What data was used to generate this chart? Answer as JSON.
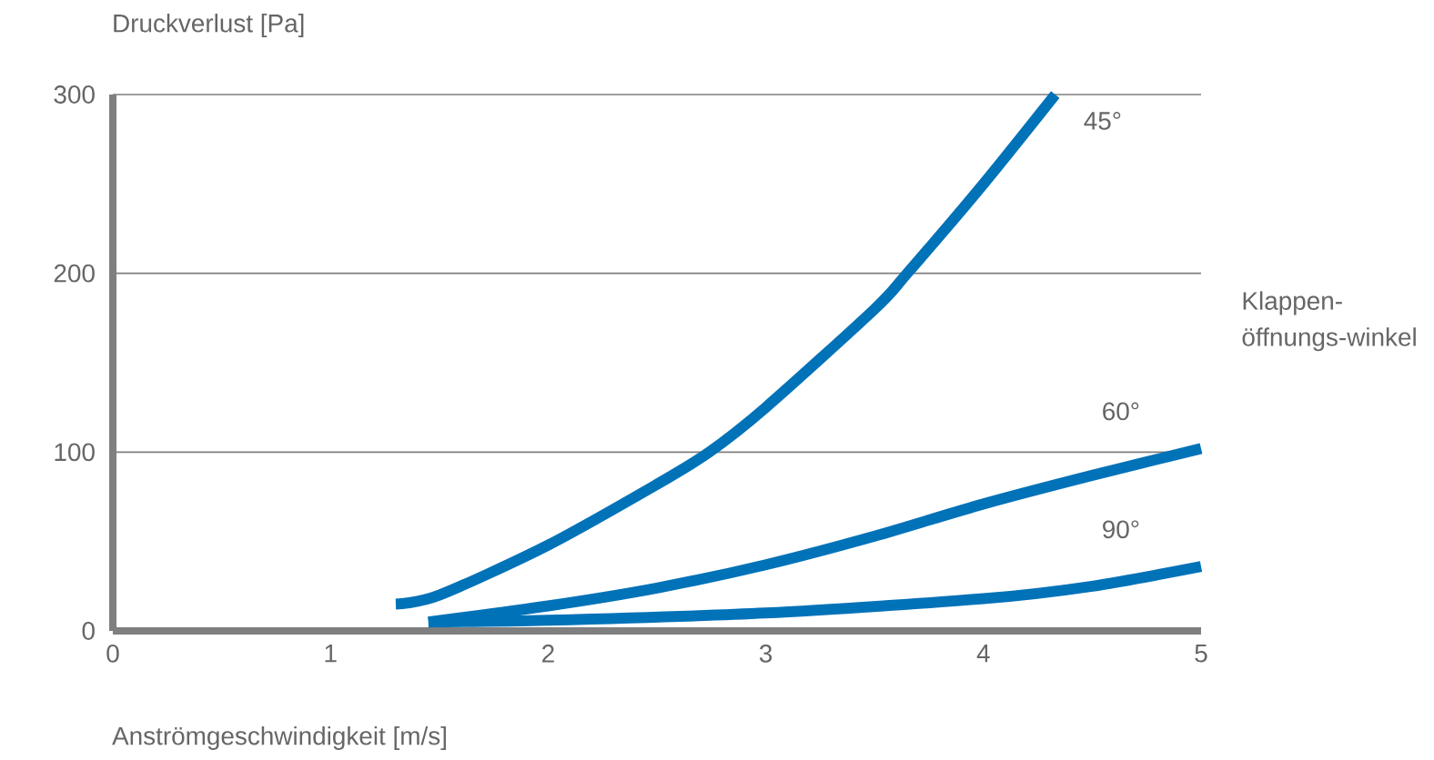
{
  "chart_data": {
    "type": "line",
    "xlabel": "Anströmgeschwindigkeit [m/s]",
    "ylabel": "Druckverlust [Pa]",
    "legend_title": "Klappen-öffnungs-winkel",
    "xlim": [
      0,
      5
    ],
    "ylim": [
      0,
      300
    ],
    "xticks": [
      0,
      1,
      2,
      3,
      4,
      5
    ],
    "yticks": [
      0,
      100,
      200,
      300
    ],
    "grid": "y",
    "legend": false,
    "marker": "none",
    "line_style": "solid",
    "series": [
      {
        "name": "45°",
        "color": "#0072b8",
        "x": [
          1.3,
          1.5,
          2,
          2.5,
          2.74,
          3,
          3.5,
          3.65,
          4,
          4.33
        ],
        "values": [
          15,
          20,
          48,
          82,
          100,
          125,
          180,
          200,
          250,
          300
        ]
      },
      {
        "name": "60°",
        "color": "#0072b8",
        "x": [
          1.45,
          2,
          2.5,
          3,
          3.5,
          4,
          4.5,
          5
        ],
        "values": [
          5,
          14,
          24,
          37,
          53,
          71,
          87,
          102
        ]
      },
      {
        "name": "90°",
        "color": "#0072b8",
        "x": [
          1.45,
          2,
          3,
          4,
          4.5,
          5
        ],
        "values": [
          5,
          6,
          10,
          18,
          25,
          36
        ]
      }
    ]
  }
}
